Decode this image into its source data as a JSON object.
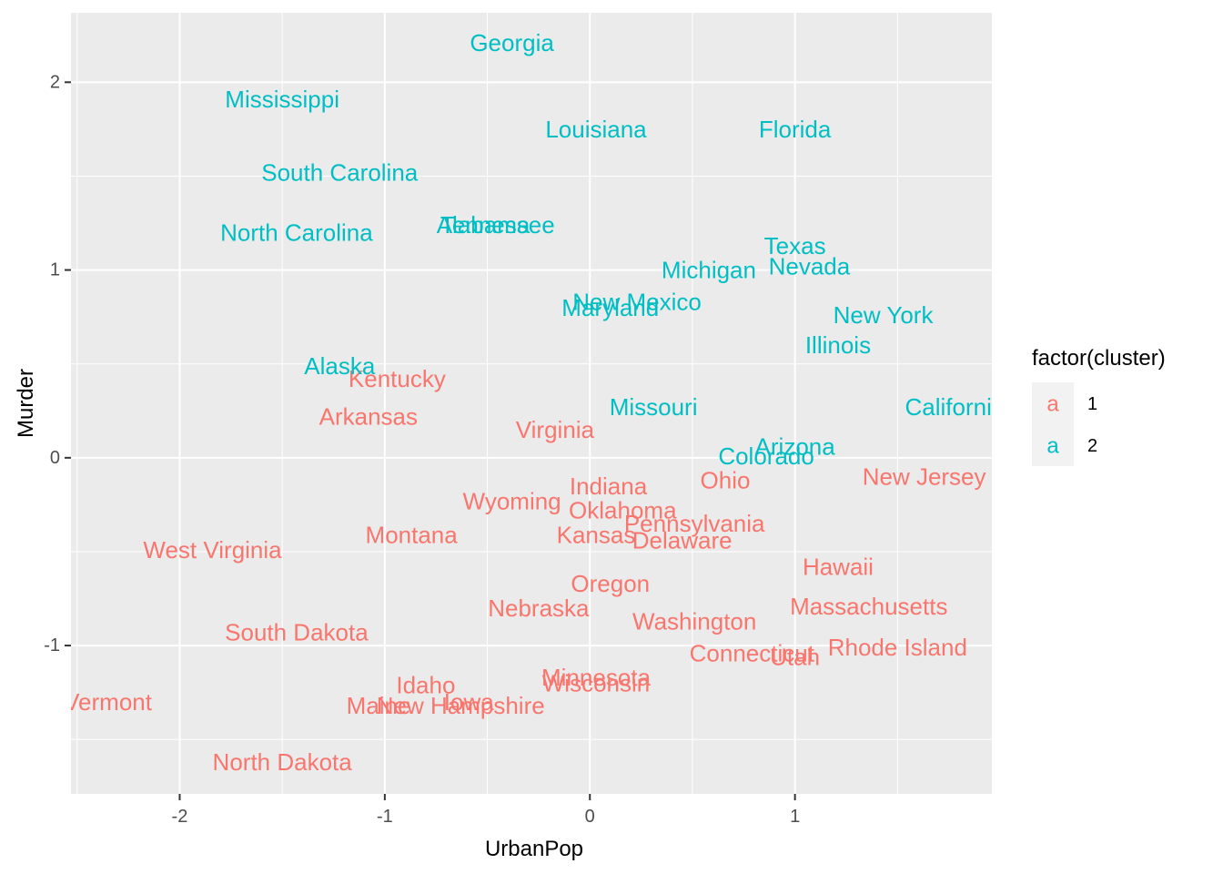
{
  "chart_data": {
    "type": "scatter",
    "subtype": "text-labels",
    "title": "",
    "xlabel": "UrbanPop",
    "ylabel": "Murder",
    "xlim": [
      -2.53,
      1.96
    ],
    "ylim": [
      -1.79,
      2.37
    ],
    "xticks": [
      -2,
      -1,
      0,
      1
    ],
    "yticks": [
      -1,
      0,
      1,
      2
    ],
    "xtick_labels": [
      "-2",
      "-1",
      "0",
      "1"
    ],
    "ytick_labels": [
      "-1",
      "0",
      "1",
      "2"
    ],
    "grid": true,
    "legend": {
      "title": "factor(cluster)",
      "position": "right",
      "key_glyph": "a",
      "entries": [
        {
          "label": "1",
          "color": "#F8766D"
        },
        {
          "label": "2",
          "color": "#00BFC4"
        }
      ]
    },
    "series": [
      {
        "name": "1",
        "color": "#F8766D",
        "points": [
          {
            "label": "Kentucky",
            "x": -0.94,
            "y": 0.42
          },
          {
            "label": "Arkansas",
            "x": -1.08,
            "y": 0.22
          },
          {
            "label": "Virginia",
            "x": -0.17,
            "y": 0.15
          },
          {
            "label": "Indiana",
            "x": 0.09,
            "y": -0.15
          },
          {
            "label": "Ohio",
            "x": 0.66,
            "y": -0.12
          },
          {
            "label": "New Jersey",
            "x": 1.63,
            "y": -0.1
          },
          {
            "label": "Wyoming",
            "x": -0.38,
            "y": -0.23
          },
          {
            "label": "Oklahoma",
            "x": 0.16,
            "y": -0.28
          },
          {
            "label": "Pennsylvania",
            "x": 0.51,
            "y": -0.35
          },
          {
            "label": "Montana",
            "x": -0.87,
            "y": -0.41
          },
          {
            "label": "Kansas",
            "x": 0.03,
            "y": -0.41
          },
          {
            "label": "Delaware",
            "x": 0.45,
            "y": -0.44
          },
          {
            "label": "West Virginia",
            "x": -1.84,
            "y": -0.49
          },
          {
            "label": "Hawaii",
            "x": 1.21,
            "y": -0.58
          },
          {
            "label": "Oregon",
            "x": 0.1,
            "y": -0.67
          },
          {
            "label": "Nebraska",
            "x": -0.25,
            "y": -0.8
          },
          {
            "label": "Massachusetts",
            "x": 1.36,
            "y": -0.79
          },
          {
            "label": "Washington",
            "x": 0.51,
            "y": -0.87
          },
          {
            "label": "South Dakota",
            "x": -1.43,
            "y": -0.93
          },
          {
            "label": "Connecticut",
            "x": 0.79,
            "y": -1.04
          },
          {
            "label": "Utah",
            "x": 1.0,
            "y": -1.06
          },
          {
            "label": "Rhode Island",
            "x": 1.5,
            "y": -1.01
          },
          {
            "label": "Minnesota",
            "x": 0.03,
            "y": -1.17
          },
          {
            "label": "Wisconsin",
            "x": 0.03,
            "y": -1.2
          },
          {
            "label": "Idaho",
            "x": -0.8,
            "y": -1.21
          },
          {
            "label": "Vermont",
            "x": -2.35,
            "y": -1.3
          },
          {
            "label": "Maine",
            "x": -1.03,
            "y": -1.32
          },
          {
            "label": "Iowa",
            "x": -0.59,
            "y": -1.3
          },
          {
            "label": "New Hampshire",
            "x": -0.63,
            "y": -1.32
          },
          {
            "label": "North Dakota",
            "x": -1.5,
            "y": -1.62
          }
        ]
      },
      {
        "name": "2",
        "color": "#00BFC4",
        "points": [
          {
            "label": "Georgia",
            "x": -0.38,
            "y": 2.21
          },
          {
            "label": "Mississippi",
            "x": -1.5,
            "y": 1.91
          },
          {
            "label": "Louisiana",
            "x": 0.03,
            "y": 1.75
          },
          {
            "label": "Florida",
            "x": 1.0,
            "y": 1.75
          },
          {
            "label": "South Carolina",
            "x": -1.22,
            "y": 1.52
          },
          {
            "label": "Alabama",
            "x": -0.52,
            "y": 1.24
          },
          {
            "label": "Tennessee",
            "x": -0.45,
            "y": 1.24
          },
          {
            "label": "North Carolina",
            "x": -1.43,
            "y": 1.2
          },
          {
            "label": "Texas",
            "x": 1.0,
            "y": 1.13
          },
          {
            "label": "Michigan",
            "x": 0.58,
            "y": 1.0
          },
          {
            "label": "Nevada",
            "x": 1.07,
            "y": 1.02
          },
          {
            "label": "New Mexico",
            "x": 0.23,
            "y": 0.83
          },
          {
            "label": "Maryland",
            "x": 0.1,
            "y": 0.8
          },
          {
            "label": "New York",
            "x": 1.43,
            "y": 0.76
          },
          {
            "label": "Illinois",
            "x": 1.21,
            "y": 0.6
          },
          {
            "label": "Alaska",
            "x": -1.22,
            "y": 0.49
          },
          {
            "label": "Missouri",
            "x": 0.31,
            "y": 0.27
          },
          {
            "label": "California",
            "x": 1.78,
            "y": 0.27
          },
          {
            "label": "Arizona",
            "x": 1.0,
            "y": 0.06
          },
          {
            "label": "Colorado",
            "x": 0.86,
            "y": 0.01
          }
        ]
      }
    ]
  }
}
